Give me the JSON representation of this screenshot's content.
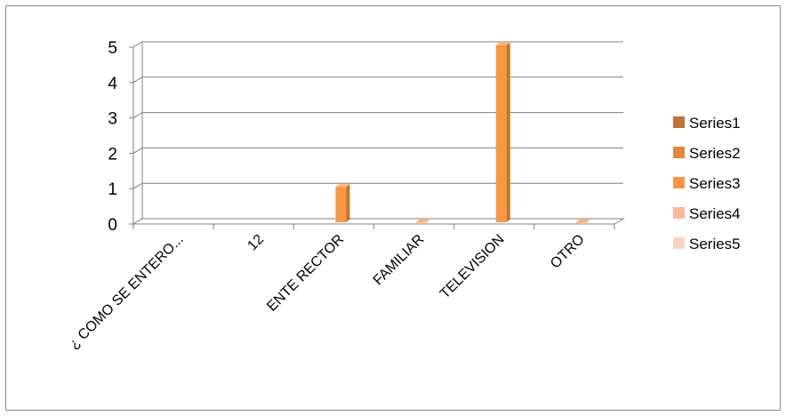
{
  "chart_data": {
    "type": "bar",
    "style": "3d-clustered-column",
    "title": "",
    "xlabel": "",
    "ylabel": "",
    "ylim": [
      0,
      5
    ],
    "yticks": [
      "0",
      "1",
      "2",
      "3",
      "4",
      "5"
    ],
    "grid": true,
    "legend_position": "right",
    "categories": [
      "¿ COMO SE ENTERO...",
      "12",
      "ENTE RECTOR",
      "FAMILIAR",
      "TELEVISION",
      "OTRO"
    ],
    "series": [
      {
        "name": "Series1",
        "color": "#C0703A",
        "values": [
          null,
          null,
          null,
          null,
          null,
          null
        ]
      },
      {
        "name": "Series2",
        "color": "#E0883F",
        "values": [
          null,
          null,
          null,
          null,
          null,
          null
        ]
      },
      {
        "name": "Series3",
        "color": "#F79646",
        "values": [
          null,
          null,
          1,
          0,
          5,
          0
        ]
      },
      {
        "name": "Series4",
        "color": "#FAB99B",
        "values": [
          null,
          null,
          null,
          null,
          null,
          null
        ]
      },
      {
        "name": "Series5",
        "color": "#FBD4C2",
        "values": [
          null,
          null,
          null,
          null,
          null,
          null
        ]
      }
    ],
    "colors": {
      "gridline": "#7f7f7f",
      "axis": "#7f7f7f",
      "bar_side": "#C9731F",
      "bar_top": "#FAB27A"
    }
  }
}
